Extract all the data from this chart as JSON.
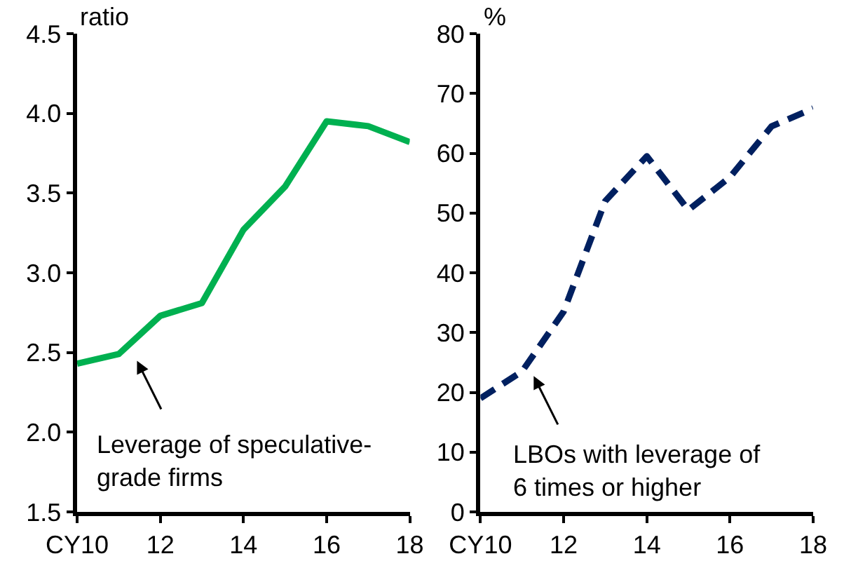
{
  "chart_data": [
    {
      "type": "line",
      "ylabel": "ratio",
      "x": [
        10,
        11,
        12,
        13,
        14,
        15,
        16,
        17,
        18
      ],
      "series": [
        {
          "color": "#00b050",
          "values": [
            2.43,
            2.49,
            2.73,
            2.81,
            3.27,
            3.54,
            3.95,
            3.92,
            3.82
          ]
        }
      ],
      "line_style": "solid",
      "xlim": [
        10,
        18
      ],
      "xticks": [
        {
          "value": 10,
          "label": "CY10"
        },
        12,
        14,
        16,
        18
      ],
      "ylim": [
        1.5,
        4.5
      ],
      "yticks": [
        1.5,
        {
          "value": 2,
          "label": "2.0"
        },
        2.5,
        {
          "value": 3,
          "label": "3.0"
        },
        3.5,
        {
          "value": 4,
          "label": "4.0"
        },
        4.5
      ],
      "annotations": [
        "Leverage of speculative-\ngrade firms"
      ]
    },
    {
      "type": "line",
      "ylabel": "%",
      "x": [
        10,
        11,
        12,
        13,
        14,
        15,
        16,
        17,
        18
      ],
      "series": [
        {
          "color": "#002060",
          "values": [
            19,
            23.5,
            33.5,
            52,
            59.5,
            50.5,
            56,
            64.5,
            67.5
          ]
        }
      ],
      "line_style": "dashed",
      "xlim": [
        10,
        18
      ],
      "xticks": [
        {
          "value": 10,
          "label": "CY10"
        },
        12,
        14,
        16,
        18
      ],
      "ylim": [
        0,
        80
      ],
      "yticks": [
        0,
        10,
        20,
        30,
        40,
        50,
        60,
        70,
        80
      ],
      "annotations": [
        "LBOs with leverage of\n6 times or higher"
      ]
    }
  ]
}
